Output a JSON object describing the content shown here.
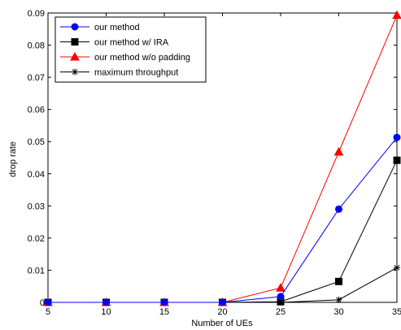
{
  "chart_data": {
    "type": "line",
    "title": "",
    "xlabel": "Number of UEs",
    "ylabel": "drop rate",
    "x": [
      5,
      10,
      15,
      20,
      25,
      30,
      35
    ],
    "xlim": [
      5,
      35
    ],
    "ylim": [
      0,
      0.09
    ],
    "xticks": [
      "5",
      "10",
      "15",
      "20",
      "25",
      "30",
      "35"
    ],
    "yticks": [
      "0",
      "0.01",
      "0.02",
      "0.03",
      "0.04",
      "0.05",
      "0.06",
      "0.07",
      "0.08",
      "0.09"
    ],
    "grid": false,
    "legend_position": "top-left",
    "series": [
      {
        "name": "our method",
        "color": "#0000ff",
        "marker": "circle",
        "values": [
          0,
          0,
          0,
          0,
          0.0018,
          0.029,
          0.0513
        ]
      },
      {
        "name": "our method w/ IRA",
        "color": "#000000",
        "marker": "square",
        "values": [
          0,
          0,
          0,
          0,
          0.0002,
          0.0065,
          0.0442
        ]
      },
      {
        "name": "our method w/o padding",
        "color": "#ff0000",
        "marker": "triangle",
        "values": [
          0,
          0,
          0,
          0,
          0.0045,
          0.0468,
          0.0893
        ]
      },
      {
        "name": "maximum throughput",
        "color": "#000000",
        "marker": "star",
        "values": [
          0,
          0,
          0,
          0,
          0,
          0.0008,
          0.0108
        ]
      }
    ]
  }
}
